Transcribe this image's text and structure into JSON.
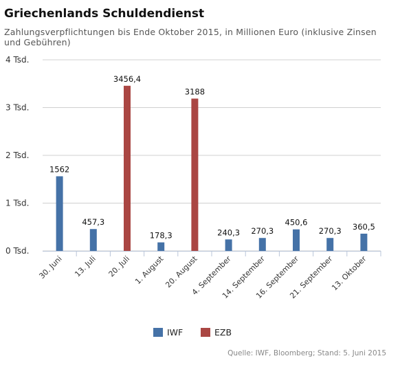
{
  "chart_data": {
    "type": "bar",
    "title": "Griechenlands Schuldendienst",
    "subtitle": "Zahlungsverpflichtungen bis Ende Oktober 2015, in Millionen Euro (inklusive Zinsen und Gebühren)",
    "categories": [
      "30. Juni",
      "13. Juli",
      "20. Juli",
      "1. August",
      "20. August",
      "4. September",
      "14. September",
      "16. September",
      "21. September",
      "13. Oktober"
    ],
    "series": [
      {
        "name": "IWF",
        "color": "#4572a7",
        "values": [
          1562,
          457.3,
          null,
          178.3,
          null,
          240.3,
          270.3,
          450.6,
          270.3,
          360.5
        ],
        "labels": [
          "1562",
          "457,3",
          null,
          "178,3",
          null,
          "240,3",
          "270,3",
          "450,6",
          "270,3",
          "360,5"
        ]
      },
      {
        "name": "EZB",
        "color": "#aa4643",
        "values": [
          null,
          null,
          3456.4,
          null,
          3188,
          null,
          null,
          null,
          null,
          null
        ],
        "labels": [
          null,
          null,
          "3456,4",
          null,
          "3188",
          null,
          null,
          null,
          null,
          null
        ]
      }
    ],
    "ylim": [
      0,
      4000
    ],
    "yticks": [
      0,
      1000,
      2000,
      3000,
      4000
    ],
    "ytick_labels": [
      "0 Tsd.",
      "1 Tsd.",
      "2 Tsd.",
      "3 Tsd.",
      "4 Tsd."
    ],
    "grid": true,
    "legend_position": "bottom-center"
  },
  "source": "Quelle: IWF, Bloomberg; Stand: 5. Juni 2015"
}
